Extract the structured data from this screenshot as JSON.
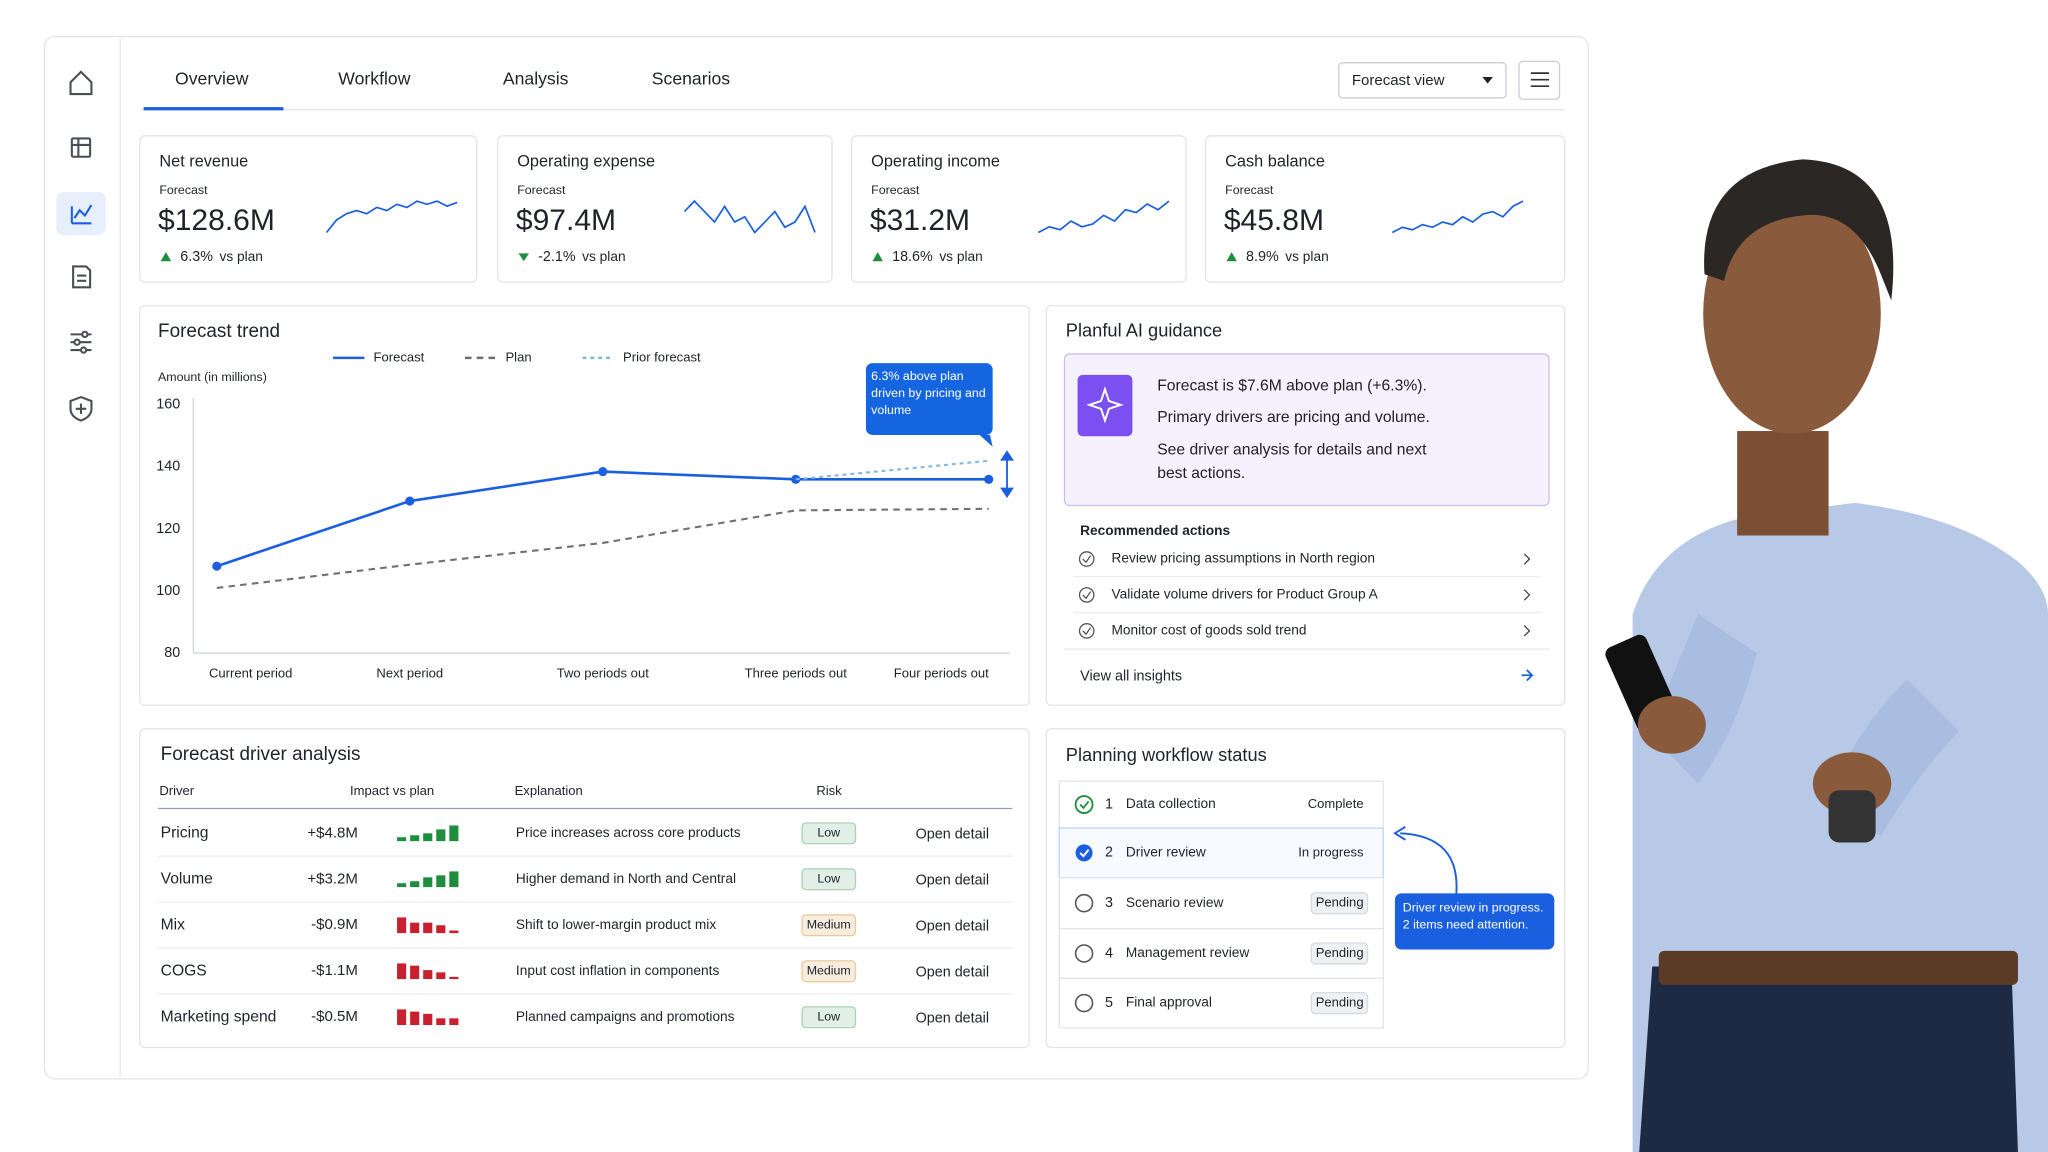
{
  "tabs": [
    "Overview",
    "Workflow",
    "Analysis",
    "Scenarios"
  ],
  "view_select": "Forecast view",
  "kpis": [
    {
      "title": "Net revenue",
      "label": "Forecast",
      "value": "$128.6M",
      "change": "6.3%",
      "compare": "vs plan",
      "trend": [
        2,
        4,
        5,
        5.5,
        5,
        6,
        5.5,
        6.5,
        6,
        7,
        6.5,
        7,
        6.2,
        6.8
      ]
    },
    {
      "title": "Operating expense",
      "label": "Forecast",
      "value": "$97.4M",
      "change": "-2.1%",
      "compare": "vs plan",
      "trend": [
        6,
        7,
        6,
        5,
        6.5,
        5,
        5.5,
        4,
        5,
        6,
        4.5,
        5,
        6.5,
        4
      ]
    },
    {
      "title": "Operating income",
      "label": "Forecast",
      "value": "$31.2M",
      "change": "18.6%",
      "compare": "vs plan",
      "trend": [
        2,
        3,
        2.5,
        4,
        3,
        3.5,
        5,
        4,
        6,
        5.5,
        7,
        6,
        7.5
      ]
    },
    {
      "title": "Cash balance",
      "label": "Forecast",
      "value": "$45.8M",
      "change": "8.9%",
      "compare": "vs plan",
      "trend": [
        2,
        3,
        2.5,
        3.5,
        3,
        4,
        3.5,
        5,
        4,
        5.5,
        6,
        5,
        7,
        8
      ]
    }
  ],
  "chart_data": {
    "type": "line",
    "title": "Forecast trend",
    "y_label": "Amount (in millions)",
    "categories": [
      "Current period",
      "Next period",
      "Two periods out",
      "Three periods out",
      "Four periods out"
    ],
    "series": [
      {
        "name": "Forecast",
        "color": "#1a5fe0",
        "markers": true,
        "values": [
          108,
          129,
          138.5,
          136,
          136
        ]
      },
      {
        "name": "Plan",
        "color": "#707070",
        "dash": "5 4",
        "values": [
          101,
          108.5,
          115.5,
          126,
          126.5
        ]
      },
      {
        "name": "Prior forecast",
        "color": "#7fb8e6",
        "dash": "3 3",
        "values": [
          null,
          null,
          null,
          136,
          142
        ]
      }
    ],
    "ylim": [
      80,
      160
    ],
    "yticks": [
      80,
      100,
      120,
      140,
      160
    ],
    "grid": false,
    "annotation": "6.3% above plan driven by pricing and volume"
  },
  "ai_guidance": {
    "title": "Planful AI guidance",
    "messages": [
      "Forecast is $7.6M above plan (+6.3%).",
      "Primary drivers are pricing and volume.",
      "See driver analysis for details and next best actions."
    ],
    "actions_title": "Recommended actions",
    "actions": [
      "Review pricing assumptions in North region",
      "Validate volume drivers for Product Group A",
      "Monitor cost of goods sold trend"
    ],
    "link": "View all insights"
  },
  "drivers": {
    "title": "Forecast driver analysis",
    "columns": [
      "Driver",
      "Impact vs plan",
      "Explanation",
      "Risk"
    ],
    "rows": [
      {
        "driver": "Pricing",
        "impact": "+$4.8M",
        "trend": [
          2,
          3,
          4,
          6,
          8
        ],
        "explanation": "Price increases across core products",
        "risk": "Low",
        "risk_color": "#2f8f4e",
        "action": "Open detail"
      },
      {
        "driver": "Volume",
        "impact": "+$3.2M",
        "trend": [
          2,
          3,
          5,
          6,
          8
        ],
        "explanation": "Higher demand in North and Central",
        "risk": "Low",
        "risk_color": "#2f8f4e",
        "action": "Open detail"
      },
      {
        "driver": "Mix",
        "impact": "-$0.9M",
        "trend": [
          6,
          4,
          4,
          3,
          1
        ],
        "explanation": "Shift to lower-margin product mix",
        "risk": "Medium",
        "risk_color": "#c77d12",
        "action": "Open detail"
      },
      {
        "driver": "COGS",
        "impact": "-$1.1M",
        "trend": [
          7,
          6,
          4,
          3,
          1
        ],
        "explanation": "Input cost inflation in components",
        "risk": "Medium",
        "risk_color": "#c77d12",
        "action": "Open detail"
      },
      {
        "driver": "Marketing spend",
        "impact": "-$0.5M",
        "trend": [
          7,
          6,
          5,
          3,
          3
        ],
        "explanation": "Planned campaigns and promotions",
        "risk": "Low",
        "risk_color": "#2f8f4e",
        "action": "Open detail"
      }
    ]
  },
  "workflow": {
    "title": "Planning workflow status",
    "steps": [
      {
        "number": "1",
        "label": "Data collection",
        "status": "Complete",
        "state": "complete"
      },
      {
        "number": "2",
        "label": "Driver review",
        "status": "In progress",
        "state": "active"
      },
      {
        "number": "3",
        "label": "Scenario review",
        "status": "Pending",
        "state": "pending"
      },
      {
        "number": "4",
        "label": "Management review",
        "status": "Pending",
        "state": "pending"
      },
      {
        "number": "5",
        "label": "Final approval",
        "status": "Pending",
        "state": "pending"
      }
    ],
    "callout": "Driver review in progress. 2 items need attention."
  }
}
